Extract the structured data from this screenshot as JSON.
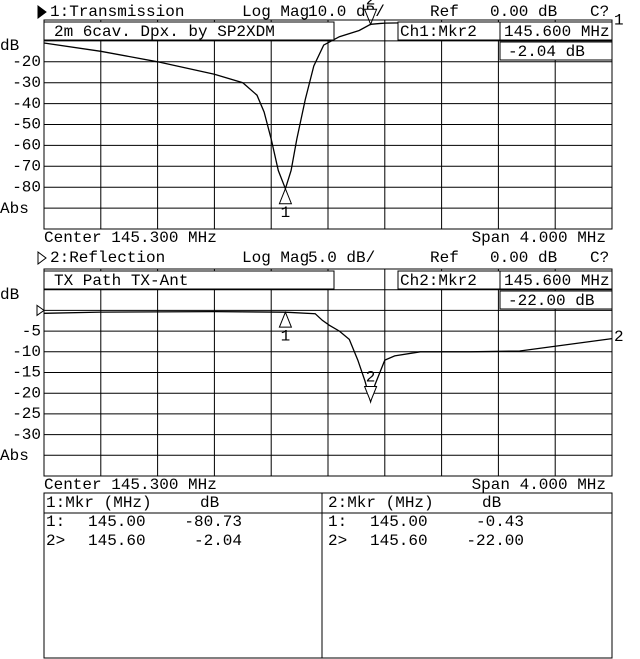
{
  "chart_data": [
    {
      "type": "line",
      "title": "1:Transmission",
      "format": "Log Mag",
      "scale": "10.0 dB/",
      "ref_label": "Ref",
      "reference": "0.00 dB",
      "status": "C?",
      "annotation": "2m 6cav. Dpx. by SP2XDM",
      "y_label": "dB",
      "format_label": "Abs",
      "center": "Center 145.300 MHz",
      "span": "Span 4.000 MHz",
      "readout": {
        "channel": "Ch1:Mkr2",
        "frequency": "145.600 MHz",
        "value": "-2.04 dB"
      },
      "trace_label": "1",
      "color": "#000000",
      "x": [
        143.3,
        143.7,
        144.1,
        144.5,
        144.7,
        144.8,
        144.85,
        144.9,
        144.95,
        145.0,
        145.04,
        145.08,
        145.14,
        145.2,
        145.27,
        145.38,
        145.52,
        145.6,
        145.7,
        146.0,
        146.5,
        147.3
      ],
      "values": [
        -11,
        -15,
        -20,
        -26,
        -30,
        -36,
        -44,
        -57,
        -72,
        -80.73,
        -72,
        -57,
        -38,
        -22,
        -12,
        -8,
        -5,
        -2.04,
        -1.5,
        -1.2,
        -1,
        -1
      ],
      "markers": [
        {
          "label": "1",
          "x": 145.0,
          "value": -80.73
        },
        {
          "label": "2",
          "x": 145.6,
          "value": -2.04
        }
      ],
      "xlim": [
        143.3,
        147.3
      ],
      "ylim": [
        -100,
        0
      ],
      "xticks": [
        {
          "value": 143.3,
          "label": null
        },
        {
          "value": 143.7,
          "label": null
        },
        {
          "value": 144.1,
          "label": null
        },
        {
          "value": 144.5,
          "label": null
        },
        {
          "value": 144.9,
          "label": null
        },
        {
          "value": 145.3,
          "label": null
        },
        {
          "value": 145.7,
          "label": null
        },
        {
          "value": 146.1,
          "label": null
        },
        {
          "value": 146.5,
          "label": null
        },
        {
          "value": 146.9,
          "label": null
        },
        {
          "value": 147.3,
          "label": null
        }
      ],
      "yticks": [
        {
          "value": 0,
          "label": null
        },
        {
          "value": -10,
          "label": null
        },
        -20,
        -30,
        -40,
        -50,
        -60,
        -70,
        -80,
        {
          "value": -90,
          "label": null
        },
        {
          "value": -100,
          "label": null
        }
      ],
      "grid": true
    },
    {
      "type": "line",
      "title": "2:Reflection",
      "format": "Log Mag",
      "scale": "5.0 dB/",
      "ref_label": "Ref",
      "reference": "0.00 dB",
      "status": "C?",
      "annotation": "TX Path TX-Ant",
      "y_label": "dB",
      "format_label": "Abs",
      "center": "Center 145.300 MHz",
      "span": "Span 4.000 MHz",
      "readout": {
        "channel": "Ch2:Mkr2",
        "frequency": "145.600 MHz",
        "value": "-22.00 dB"
      },
      "trace_label": "2",
      "color": "#000000",
      "x": [
        143.3,
        143.7,
        144.5,
        145.0,
        145.21,
        145.26,
        145.31,
        145.38,
        145.45,
        145.51,
        145.56,
        145.6,
        145.63,
        145.7,
        145.77,
        145.95,
        146.3,
        146.65,
        147.3
      ],
      "values": [
        -0.7,
        -0.4,
        -0.3,
        -0.43,
        -0.8,
        -2.4,
        -3.6,
        -5,
        -7,
        -12,
        -17,
        -22,
        -18,
        -12,
        -11,
        -10,
        -10,
        -9.8,
        -6.8
      ],
      "markers": [
        {
          "label": "1",
          "x": 145.0,
          "value": -0.43
        },
        {
          "label": "2",
          "x": 145.6,
          "value": -22.0
        }
      ],
      "xlim": [
        143.3,
        147.3
      ],
      "ylim": [
        -40,
        10
      ],
      "xticks": [
        {
          "value": 143.3,
          "label": null
        },
        {
          "value": 143.7,
          "label": null
        },
        {
          "value": 144.1,
          "label": null
        },
        {
          "value": 144.5,
          "label": null
        },
        {
          "value": 144.9,
          "label": null
        },
        {
          "value": 145.3,
          "label": null
        },
        {
          "value": 145.7,
          "label": null
        },
        {
          "value": 146.1,
          "label": null
        },
        {
          "value": 146.5,
          "label": null
        },
        {
          "value": 146.9,
          "label": null
        },
        {
          "value": 147.3,
          "label": null
        }
      ],
      "yticks": [
        {
          "value": 10,
          "label": null
        },
        {
          "value": 5,
          "label": null
        },
        {
          "value": 0,
          "label": null
        },
        -5,
        -10,
        -15,
        -20,
        -25,
        -30,
        {
          "value": -35,
          "label": null
        },
        {
          "value": -40,
          "label": null
        }
      ],
      "grid": true
    }
  ],
  "marker_table": {
    "columns": [
      {
        "header": [
          "1:Mkr (MHz)",
          "dB"
        ],
        "rows": [
          [
            "1:",
            "145.00",
            "-80.73"
          ],
          [
            "2>",
            "145.60",
            "-2.04"
          ]
        ]
      },
      {
        "header": [
          "2:Mkr (MHz)",
          "dB"
        ],
        "rows": [
          [
            "1:",
            "145.00",
            "-0.43"
          ],
          [
            "2>",
            "145.60",
            "-22.00"
          ]
        ]
      }
    ]
  }
}
